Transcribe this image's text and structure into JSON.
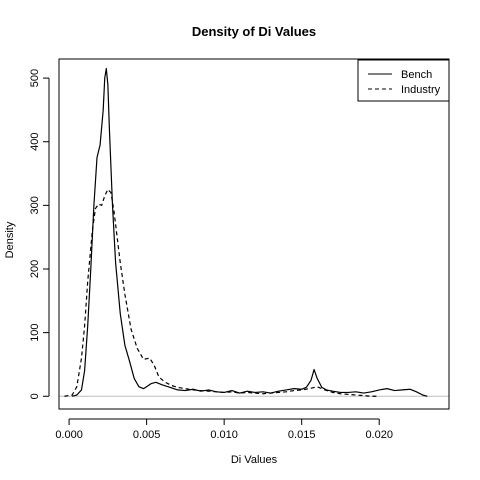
{
  "chart_data": {
    "type": "line",
    "title": "Density of Di Values",
    "xlabel": "Di Values",
    "ylabel": "Density",
    "xlim": [
      -0.00065,
      0.0245
    ],
    "ylim": [
      -20,
      530
    ],
    "x_ticks": [
      0.0,
      0.005,
      0.01,
      0.015,
      0.02
    ],
    "x_tick_labels": [
      "0.000",
      "0.005",
      "0.010",
      "0.015",
      "0.020"
    ],
    "y_ticks": [
      0,
      100,
      200,
      300,
      400,
      500
    ],
    "y_tick_labels": [
      "0",
      "100",
      "200",
      "300",
      "400",
      "500"
    ],
    "baseline": 0,
    "legend_position": "top-right",
    "series": [
      {
        "name": "Bench",
        "line_style": "solid",
        "color": "#000000",
        "points": [
          [
            0.0002,
            0
          ],
          [
            0.0005,
            2
          ],
          [
            0.0008,
            10
          ],
          [
            0.001,
            40
          ],
          [
            0.0012,
            110
          ],
          [
            0.0014,
            200
          ],
          [
            0.0016,
            300
          ],
          [
            0.0018,
            375
          ],
          [
            0.002,
            395
          ],
          [
            0.0022,
            450
          ],
          [
            0.0023,
            500
          ],
          [
            0.0024,
            515
          ],
          [
            0.0025,
            490
          ],
          [
            0.0026,
            420
          ],
          [
            0.0028,
            300
          ],
          [
            0.003,
            210
          ],
          [
            0.0033,
            130
          ],
          [
            0.0036,
            80
          ],
          [
            0.0039,
            55
          ],
          [
            0.0042,
            28
          ],
          [
            0.0045,
            15
          ],
          [
            0.0048,
            12
          ],
          [
            0.005,
            15
          ],
          [
            0.0053,
            20
          ],
          [
            0.0056,
            22
          ],
          [
            0.006,
            18
          ],
          [
            0.0065,
            14
          ],
          [
            0.007,
            10
          ],
          [
            0.0075,
            9
          ],
          [
            0.008,
            11
          ],
          [
            0.0085,
            8
          ],
          [
            0.009,
            10
          ],
          [
            0.0095,
            7
          ],
          [
            0.01,
            6
          ],
          [
            0.0105,
            9
          ],
          [
            0.011,
            5
          ],
          [
            0.0115,
            8
          ],
          [
            0.012,
            6
          ],
          [
            0.0125,
            7
          ],
          [
            0.013,
            5
          ],
          [
            0.0135,
            8
          ],
          [
            0.014,
            10
          ],
          [
            0.0145,
            12
          ],
          [
            0.015,
            11
          ],
          [
            0.0153,
            14
          ],
          [
            0.0156,
            25
          ],
          [
            0.0158,
            42
          ],
          [
            0.016,
            28
          ],
          [
            0.0163,
            14
          ],
          [
            0.0166,
            10
          ],
          [
            0.017,
            8
          ],
          [
            0.0175,
            6
          ],
          [
            0.018,
            6
          ],
          [
            0.0185,
            7
          ],
          [
            0.019,
            5
          ],
          [
            0.0195,
            7
          ],
          [
            0.02,
            10
          ],
          [
            0.0205,
            12
          ],
          [
            0.021,
            9
          ],
          [
            0.0215,
            10
          ],
          [
            0.022,
            11
          ],
          [
            0.0224,
            7
          ],
          [
            0.0228,
            2
          ],
          [
            0.0231,
            0
          ]
        ]
      },
      {
        "name": "Industry",
        "line_style": "dashed",
        "color": "#000000",
        "points": [
          [
            -0.0003,
            0
          ],
          [
            0.0002,
            2
          ],
          [
            0.0005,
            15
          ],
          [
            0.0008,
            60
          ],
          [
            0.001,
            110
          ],
          [
            0.0012,
            180
          ],
          [
            0.0015,
            260
          ],
          [
            0.0017,
            295
          ],
          [
            0.0019,
            302
          ],
          [
            0.0021,
            300
          ],
          [
            0.0023,
            315
          ],
          [
            0.0025,
            325
          ],
          [
            0.0027,
            320
          ],
          [
            0.0029,
            290
          ],
          [
            0.0031,
            250
          ],
          [
            0.0033,
            210
          ],
          [
            0.0036,
            160
          ],
          [
            0.004,
            105
          ],
          [
            0.0044,
            75
          ],
          [
            0.0048,
            58
          ],
          [
            0.0052,
            60
          ],
          [
            0.0055,
            48
          ],
          [
            0.0058,
            30
          ],
          [
            0.0062,
            22
          ],
          [
            0.0066,
            17
          ],
          [
            0.007,
            14
          ],
          [
            0.0075,
            12
          ],
          [
            0.008,
            10
          ],
          [
            0.0085,
            9
          ],
          [
            0.009,
            8
          ],
          [
            0.0095,
            7
          ],
          [
            0.01,
            6
          ],
          [
            0.0105,
            7
          ],
          [
            0.011,
            5
          ],
          [
            0.0115,
            6
          ],
          [
            0.012,
            5
          ],
          [
            0.0125,
            4
          ],
          [
            0.013,
            5
          ],
          [
            0.0135,
            6
          ],
          [
            0.014,
            7
          ],
          [
            0.0145,
            9
          ],
          [
            0.015,
            10
          ],
          [
            0.0155,
            12
          ],
          [
            0.016,
            15
          ],
          [
            0.0165,
            10
          ],
          [
            0.017,
            6
          ],
          [
            0.0175,
            4
          ],
          [
            0.018,
            3
          ],
          [
            0.0185,
            2
          ],
          [
            0.019,
            1
          ],
          [
            0.0195,
            0
          ],
          [
            0.02,
            0
          ]
        ]
      }
    ]
  }
}
